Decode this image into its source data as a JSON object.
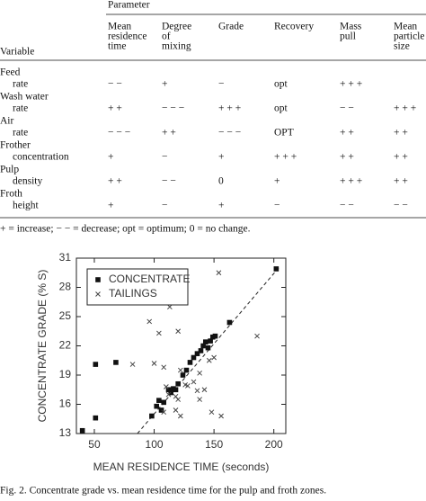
{
  "table": {
    "group_header": "Parameter",
    "columns": [
      [
        "Variable"
      ],
      [
        "Mean",
        "residence",
        "time"
      ],
      [
        "Degree",
        "of",
        "mixing"
      ],
      [
        "Grade"
      ],
      [
        "Recovery"
      ],
      [
        "Mass",
        "pull"
      ],
      [
        "Mean",
        "particle",
        "size"
      ]
    ],
    "rows": [
      {
        "group": "Feed",
        "variable": "rate",
        "cells": [
          "− −",
          "+",
          "−",
          "opt",
          "+ + +",
          null
        ]
      },
      {
        "group": "Wash water",
        "variable": "rate",
        "cells": [
          "+ +",
          "− − −",
          "+ + +",
          "opt",
          "− −",
          "+ + +"
        ]
      },
      {
        "group": "Air",
        "variable": "rate",
        "cells": [
          "− − −",
          "+ +",
          "− − −",
          "OPT",
          "+ +",
          "+ +"
        ]
      },
      {
        "group": "Frother",
        "variable": "concentration",
        "cells": [
          "+",
          "−",
          "+",
          "+ + +",
          "+ +",
          "+ +"
        ]
      },
      {
        "group": "Pulp",
        "variable": "density",
        "cells": [
          "+ +",
          "− −",
          "0",
          "+",
          "+ + +",
          "+ +"
        ]
      },
      {
        "group": "Froth",
        "variable": "height",
        "cells": [
          "+",
          "−",
          "+",
          "−",
          "− −",
          "− −"
        ]
      }
    ],
    "footnote": "+ = increase; − − = decrease; opt = optimum; 0 = no change."
  },
  "chart_data": {
    "type": "scatter",
    "x_label": "MEAN RESIDENCE TIME (seconds)",
    "y_label": "CONCENTRATE GRADE (% S)",
    "xlim": [
      35,
      210
    ],
    "xticks": [
      50,
      100,
      150,
      200
    ],
    "ylim": [
      13,
      31
    ],
    "yticks": [
      13,
      16,
      19,
      22,
      25,
      28,
      31
    ],
    "legend": "upper left",
    "series": [
      {
        "name": "CONCENTRATE",
        "color": "#111111",
        "marker": "square",
        "x": [
          40,
          51,
          51,
          68,
          98,
          102,
          104,
          106,
          108,
          112,
          114,
          116,
          118,
          120,
          124,
          127,
          130,
          133,
          136,
          139,
          141,
          143,
          145,
          147,
          149,
          151,
          163,
          202
        ],
        "values": [
          13.3,
          14.6,
          20.1,
          20.3,
          14.8,
          15.8,
          16.4,
          15.4,
          16.2,
          17.5,
          17.2,
          17.6,
          17.5,
          18.1,
          19.0,
          19.5,
          20.3,
          20.8,
          21.2,
          21.5,
          22.0,
          22.4,
          21.8,
          22.5,
          22.9,
          23.0,
          24.4,
          29.9
        ]
      },
      {
        "name": "TAILINGS",
        "color": "#444444",
        "marker": "x",
        "x": [
          82,
          96,
          100,
          104,
          108,
          110,
          112,
          118,
          120,
          126,
          128,
          122,
          122,
          118,
          133,
          136,
          138,
          138,
          142,
          148,
          150,
          156,
          146,
          154,
          186,
          113,
          120,
          108
        ],
        "values": [
          20.1,
          24.5,
          20.2,
          23.3,
          19.8,
          17.8,
          17.0,
          16.8,
          16.5,
          18.0,
          17.9,
          19.5,
          14.8,
          15.4,
          18.3,
          17.4,
          19.2,
          16.5,
          17.5,
          15.2,
          20.8,
          14.8,
          20.5,
          29.5,
          23.0,
          26.0,
          23.5,
          15.2
        ]
      }
    ],
    "fit_line": {
      "x": [
        86,
        204
      ],
      "values": [
        13,
        30
      ]
    }
  },
  "caption": "Fig. 2. Concentrate grade vs. mean residence time for the pulp and froth zones."
}
